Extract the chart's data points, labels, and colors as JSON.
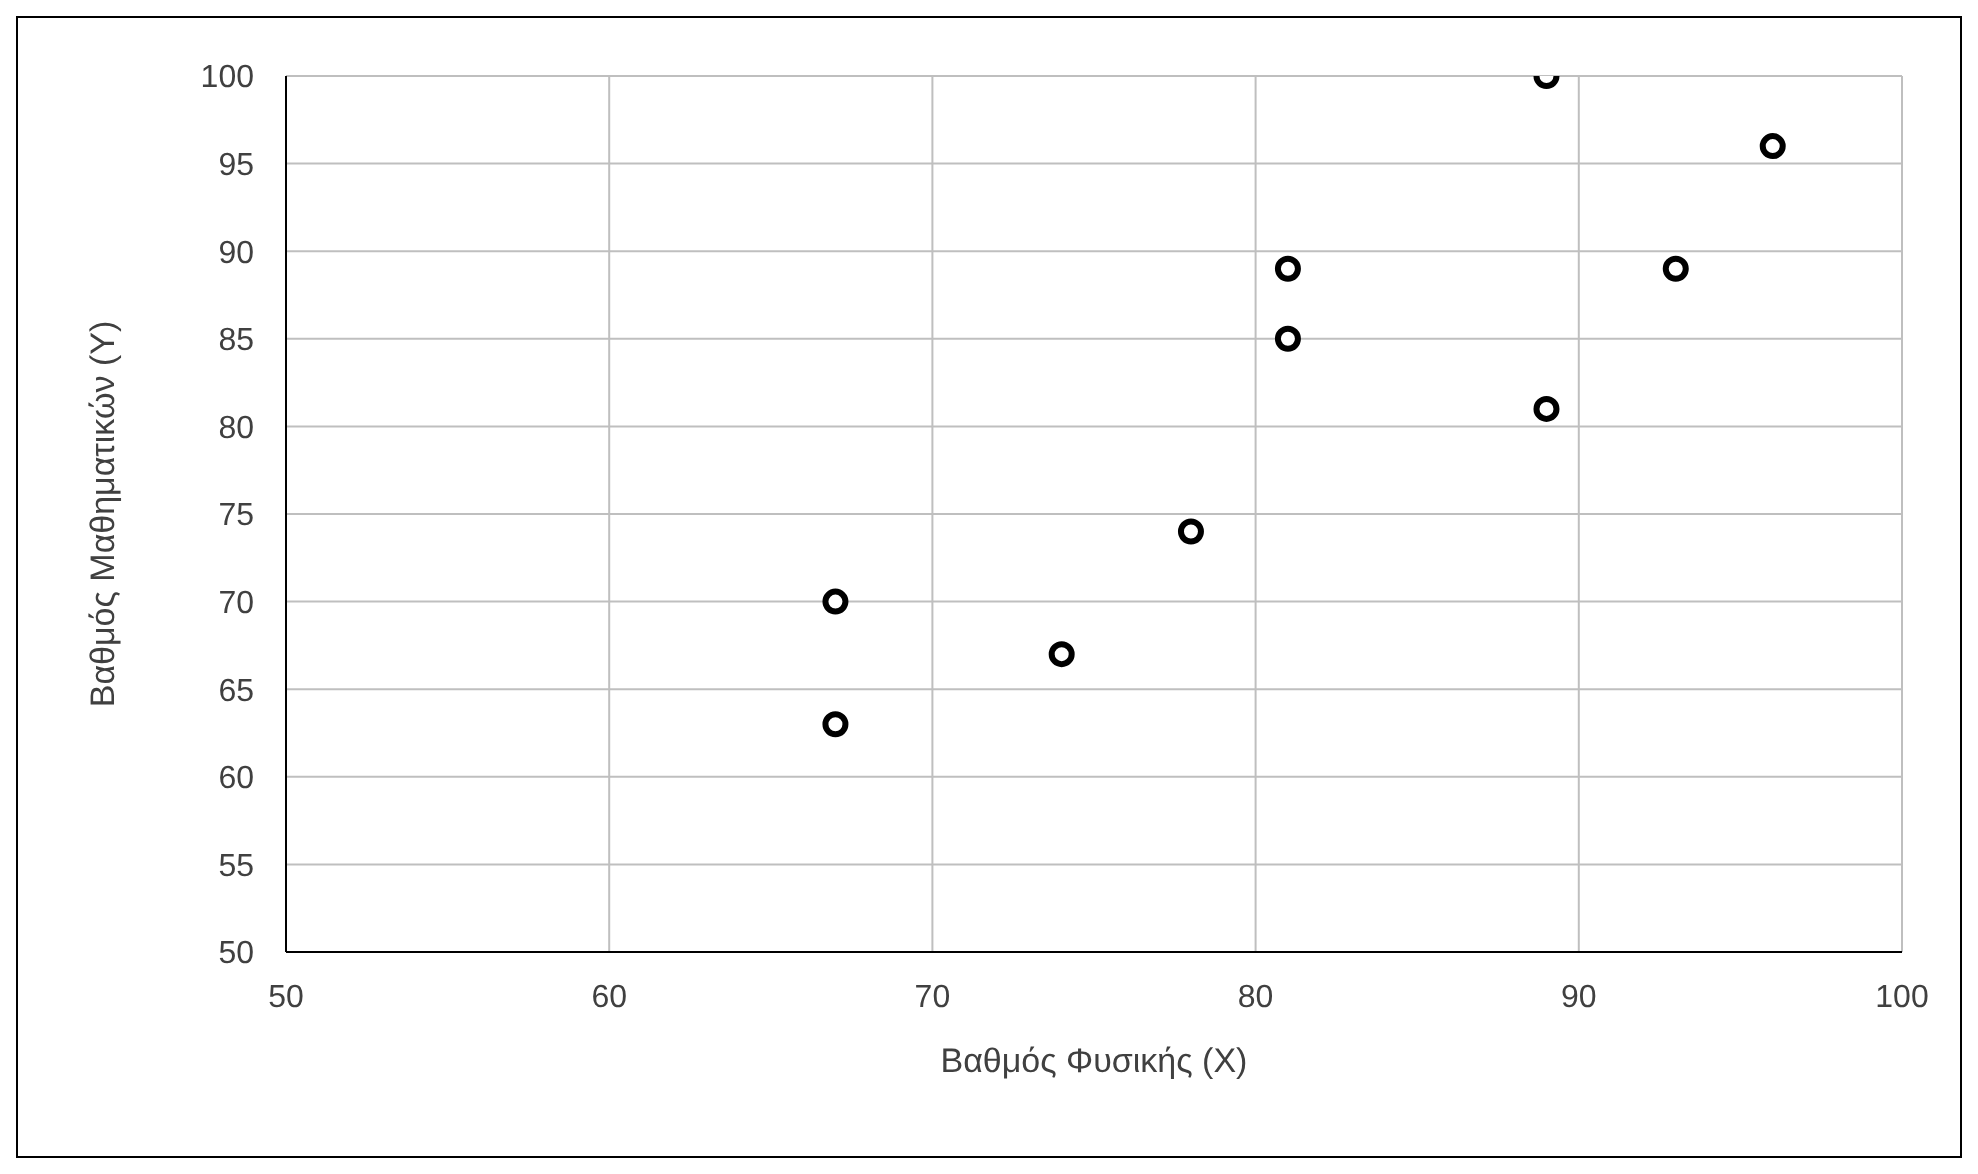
{
  "chart_data": {
    "type": "scatter",
    "xlabel": "Βαθμός Φυσικής (X)",
    "ylabel": "Βαθμός Μαθηματικών (Y)",
    "x": [
      67,
      67,
      74,
      78,
      81,
      81,
      89,
      89,
      93,
      96
    ],
    "series": [
      {
        "color": "#000000",
        "values": [
          70,
          63,
          67,
          74,
          89,
          85,
          100,
          81,
          89,
          96
        ]
      }
    ],
    "xlim": [
      50,
      100
    ],
    "xticks": [
      50,
      60,
      70,
      80,
      90,
      100
    ],
    "ylim": [
      50,
      100
    ],
    "yticks": [
      50,
      55,
      60,
      65,
      70,
      75,
      80,
      85,
      90,
      95,
      100
    ],
    "grid": true,
    "marker": "circle"
  }
}
